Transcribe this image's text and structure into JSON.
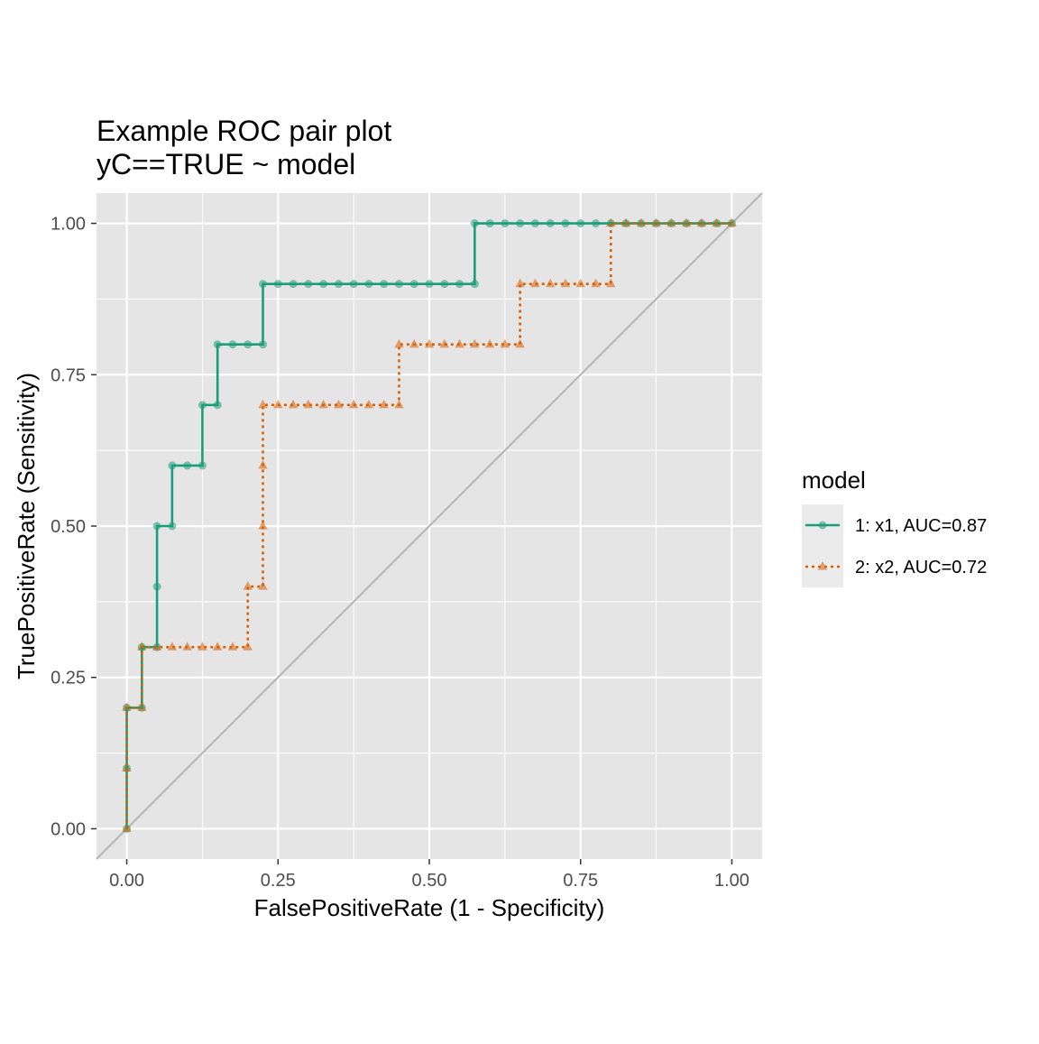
{
  "chart_data": {
    "type": "line",
    "title": "Example ROC pair plot",
    "subtitle": "yC==TRUE ~ model",
    "xlabel": "FalsePositiveRate (1 - Specificity)",
    "ylabel": "TruePositiveRate (Sensitivity)",
    "xlim": [
      -0.05,
      1.05
    ],
    "ylim": [
      -0.05,
      1.05
    ],
    "x_ticks": [
      "0.00",
      "0.25",
      "0.50",
      "0.75",
      "1.00"
    ],
    "y_ticks": [
      "0.00",
      "0.25",
      "0.50",
      "0.75",
      "1.00"
    ],
    "grid": true,
    "reference_line": "diagonal",
    "legend_title": "model",
    "legend_position": "right",
    "series": [
      {
        "name": "1: x1, AUC=0.87",
        "color": "#1b9e77",
        "line_style": "solid",
        "marker": "circle",
        "points": [
          [
            0.0,
            0.0
          ],
          [
            0.0,
            0.1
          ],
          [
            0.0,
            0.2
          ],
          [
            0.025,
            0.2
          ],
          [
            0.025,
            0.3
          ],
          [
            0.05,
            0.3
          ],
          [
            0.05,
            0.4
          ],
          [
            0.05,
            0.5
          ],
          [
            0.075,
            0.5
          ],
          [
            0.075,
            0.6
          ],
          [
            0.1,
            0.6
          ],
          [
            0.125,
            0.6
          ],
          [
            0.125,
            0.7
          ],
          [
            0.15,
            0.7
          ],
          [
            0.15,
            0.8
          ],
          [
            0.175,
            0.8
          ],
          [
            0.2,
            0.8
          ],
          [
            0.225,
            0.8
          ],
          [
            0.225,
            0.9
          ],
          [
            0.25,
            0.9
          ],
          [
            0.275,
            0.9
          ],
          [
            0.3,
            0.9
          ],
          [
            0.325,
            0.9
          ],
          [
            0.35,
            0.9
          ],
          [
            0.375,
            0.9
          ],
          [
            0.4,
            0.9
          ],
          [
            0.425,
            0.9
          ],
          [
            0.45,
            0.9
          ],
          [
            0.475,
            0.9
          ],
          [
            0.5,
            0.9
          ],
          [
            0.525,
            0.9
          ],
          [
            0.55,
            0.9
          ],
          [
            0.575,
            0.9
          ],
          [
            0.575,
            1.0
          ],
          [
            0.6,
            1.0
          ],
          [
            0.625,
            1.0
          ],
          [
            0.65,
            1.0
          ],
          [
            0.675,
            1.0
          ],
          [
            0.7,
            1.0
          ],
          [
            0.725,
            1.0
          ],
          [
            0.75,
            1.0
          ],
          [
            0.775,
            1.0
          ],
          [
            0.8,
            1.0
          ],
          [
            0.825,
            1.0
          ],
          [
            0.85,
            1.0
          ],
          [
            0.875,
            1.0
          ],
          [
            0.9,
            1.0
          ],
          [
            0.925,
            1.0
          ],
          [
            0.95,
            1.0
          ],
          [
            0.975,
            1.0
          ],
          [
            1.0,
            1.0
          ]
        ]
      },
      {
        "name": "2: x2, AUC=0.72",
        "color": "#d95f02",
        "line_style": "dotted",
        "marker": "triangle",
        "points": [
          [
            0.0,
            0.0
          ],
          [
            0.0,
            0.1
          ],
          [
            0.0,
            0.2
          ],
          [
            0.025,
            0.2
          ],
          [
            0.025,
            0.3
          ],
          [
            0.05,
            0.3
          ],
          [
            0.075,
            0.3
          ],
          [
            0.1,
            0.3
          ],
          [
            0.125,
            0.3
          ],
          [
            0.15,
            0.3
          ],
          [
            0.175,
            0.3
          ],
          [
            0.2,
            0.3
          ],
          [
            0.2,
            0.4
          ],
          [
            0.225,
            0.4
          ],
          [
            0.225,
            0.5
          ],
          [
            0.225,
            0.6
          ],
          [
            0.225,
            0.7
          ],
          [
            0.25,
            0.7
          ],
          [
            0.275,
            0.7
          ],
          [
            0.3,
            0.7
          ],
          [
            0.325,
            0.7
          ],
          [
            0.35,
            0.7
          ],
          [
            0.375,
            0.7
          ],
          [
            0.4,
            0.7
          ],
          [
            0.425,
            0.7
          ],
          [
            0.45,
            0.7
          ],
          [
            0.45,
            0.8
          ],
          [
            0.475,
            0.8
          ],
          [
            0.5,
            0.8
          ],
          [
            0.525,
            0.8
          ],
          [
            0.55,
            0.8
          ],
          [
            0.575,
            0.8
          ],
          [
            0.6,
            0.8
          ],
          [
            0.625,
            0.8
          ],
          [
            0.65,
            0.8
          ],
          [
            0.65,
            0.9
          ],
          [
            0.675,
            0.9
          ],
          [
            0.7,
            0.9
          ],
          [
            0.725,
            0.9
          ],
          [
            0.75,
            0.9
          ],
          [
            0.775,
            0.9
          ],
          [
            0.8,
            0.9
          ],
          [
            0.8,
            1.0
          ],
          [
            0.825,
            1.0
          ],
          [
            0.85,
            1.0
          ],
          [
            0.875,
            1.0
          ],
          [
            0.9,
            1.0
          ],
          [
            0.925,
            1.0
          ],
          [
            0.95,
            1.0
          ],
          [
            0.975,
            1.0
          ],
          [
            1.0,
            1.0
          ]
        ]
      }
    ]
  },
  "style": {
    "panel_background": "#e5e5e5",
    "grid_color": "#ffffff",
    "diagonal_color": "#b3b3b3"
  }
}
